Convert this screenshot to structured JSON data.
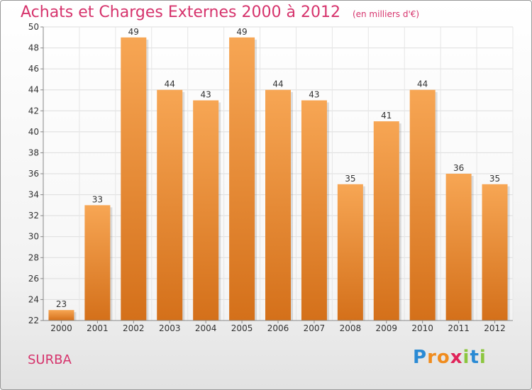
{
  "header": {
    "title": "Achats et Charges Externes 2000 à 2012",
    "unit": "(en milliers d'€)"
  },
  "location": "SURBA",
  "logo": {
    "letters": [
      "P",
      "r",
      "o",
      "x",
      "i",
      "t",
      "i"
    ],
    "colors": [
      "#2a8ad4",
      "#f08c1e",
      "#f08c1e",
      "#e0245a",
      "#8cc63f",
      "#2a8ad4",
      "#8cc63f"
    ]
  },
  "chart_data": {
    "type": "bar",
    "title": "Achats et Charges Externes 2000 à 2012",
    "subtitle": "(en milliers d'€)",
    "xlabel": "",
    "ylabel": "",
    "categories": [
      "2000",
      "2001",
      "2002",
      "2003",
      "2004",
      "2005",
      "2006",
      "2007",
      "2008",
      "2009",
      "2010",
      "2011",
      "2012"
    ],
    "values": [
      23,
      33,
      49,
      44,
      43,
      49,
      44,
      43,
      35,
      41,
      44,
      36,
      35
    ],
    "ylim": [
      22,
      50
    ],
    "yticks": [
      22,
      24,
      26,
      28,
      30,
      32,
      34,
      36,
      38,
      40,
      42,
      44,
      46,
      48,
      50
    ],
    "grid": true,
    "bar_color_top": "#f7a654",
    "bar_color_bottom": "#d4701a"
  }
}
